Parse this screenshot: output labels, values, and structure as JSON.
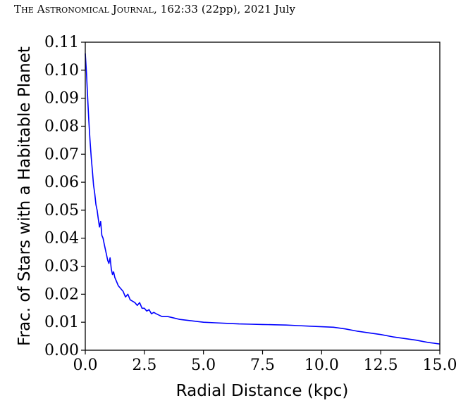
{
  "running_head": {
    "journal": "The Astronomical Journal,",
    "citation": "162:33 (22pp), 2021 July"
  },
  "chart_data": {
    "type": "line",
    "title": "",
    "xlabel": "Radial Distance (kpc)",
    "ylabel": "Frac. of Stars with a Habitable Planet",
    "xlim": [
      0,
      15
    ],
    "ylim": [
      0,
      0.11
    ],
    "grid": false,
    "x_ticks": [
      "0.0",
      "2.5",
      "5.0",
      "7.5",
      "10.0",
      "12.5",
      "15.0"
    ],
    "y_ticks": [
      "0.00",
      "0.01",
      "0.02",
      "0.03",
      "0.04",
      "0.05",
      "0.06",
      "0.07",
      "0.08",
      "0.09",
      "0.10",
      "0.11"
    ],
    "series": [
      {
        "color": "#0000ff",
        "x": [
          0.0,
          0.05,
          0.1,
          0.15,
          0.2,
          0.25,
          0.3,
          0.35,
          0.4,
          0.45,
          0.5,
          0.55,
          0.6,
          0.65,
          0.7,
          0.75,
          0.8,
          0.85,
          0.9,
          0.95,
          1.0,
          1.05,
          1.1,
          1.15,
          1.2,
          1.25,
          1.3,
          1.4,
          1.5,
          1.6,
          1.7,
          1.8,
          1.9,
          2.0,
          2.1,
          2.2,
          2.3,
          2.4,
          2.5,
          2.6,
          2.7,
          2.8,
          2.9,
          3.0,
          3.25,
          3.5,
          3.75,
          4.0,
          4.5,
          5.0,
          5.5,
          6.0,
          6.5,
          7.0,
          7.5,
          8.0,
          8.5,
          9.0,
          9.5,
          10.0,
          10.5,
          11.0,
          11.5,
          12.0,
          12.5,
          13.0,
          13.5,
          14.0,
          14.25,
          14.5,
          14.75,
          15.0
        ],
        "y": [
          0.106,
          0.099,
          0.09,
          0.082,
          0.075,
          0.069,
          0.064,
          0.059,
          0.056,
          0.052,
          0.05,
          0.047,
          0.044,
          0.046,
          0.041,
          0.04,
          0.038,
          0.036,
          0.034,
          0.032,
          0.031,
          0.033,
          0.029,
          0.027,
          0.028,
          0.026,
          0.025,
          0.023,
          0.022,
          0.021,
          0.019,
          0.02,
          0.018,
          0.0175,
          0.017,
          0.016,
          0.017,
          0.015,
          0.015,
          0.014,
          0.0145,
          0.013,
          0.0135,
          0.013,
          0.012,
          0.012,
          0.0115,
          0.011,
          0.0105,
          0.01,
          0.0098,
          0.0096,
          0.0094,
          0.0093,
          0.0092,
          0.0091,
          0.009,
          0.0088,
          0.0086,
          0.0084,
          0.0082,
          0.0076,
          0.0068,
          0.0062,
          0.0056,
          0.0048,
          0.0042,
          0.0036,
          0.0032,
          0.0028,
          0.0025,
          0.0022
        ]
      }
    ]
  }
}
